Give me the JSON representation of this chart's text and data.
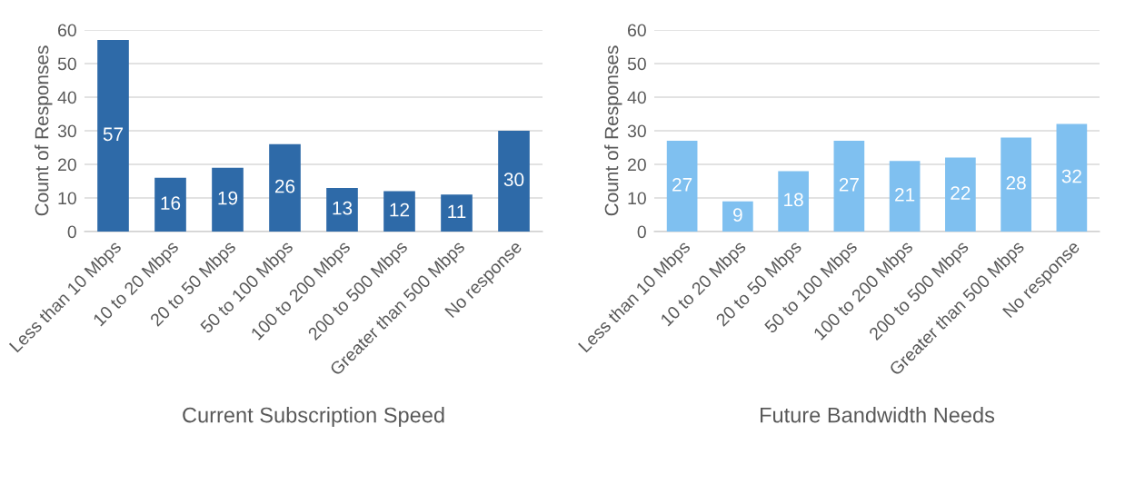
{
  "chart_data": [
    {
      "type": "bar",
      "xlabel": "Current Subscription Speed",
      "ylabel": "Count of Responses",
      "categories": [
        "Less than 10 Mbps",
        "10 to 20 Mbps",
        "20 to 50 Mbps",
        "50 to 100 Mbps",
        "100 to 200 Mbps",
        "200 to 500 Mbps",
        "Greater than 500 Mbps",
        "No response"
      ],
      "values": [
        57,
        16,
        19,
        26,
        13,
        12,
        11,
        30
      ],
      "color": "#2e6aa8",
      "ylim": [
        0,
        60
      ],
      "yticks": [
        0,
        10,
        20,
        30,
        40,
        50,
        60
      ],
      "grid": "y",
      "data_labels": true
    },
    {
      "type": "bar",
      "xlabel": "Future Bandwidth Needs",
      "ylabel": "Count of Responses",
      "categories": [
        "Less than 10 Mbps",
        "10 to 20 Mbps",
        "20 to 50 Mbps",
        "50 to 100 Mbps",
        "100 to 200 Mbps",
        "200 to 500 Mbps",
        "Greater than 500 Mbps",
        "No response"
      ],
      "values": [
        27,
        9,
        18,
        27,
        21,
        22,
        28,
        32
      ],
      "color": "#7fc0f0",
      "ylim": [
        0,
        60
      ],
      "yticks": [
        0,
        10,
        20,
        30,
        40,
        50,
        60
      ],
      "grid": "y",
      "data_labels": true
    }
  ]
}
